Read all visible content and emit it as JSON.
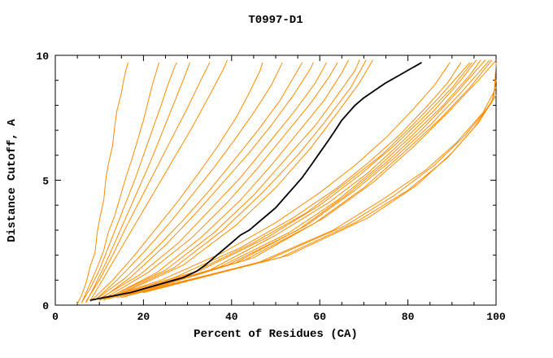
{
  "chart_data": {
    "type": "line",
    "title": "T0997-D1",
    "xlabel": "Percent of Residues (CA)",
    "ylabel": "Distance Cutoff, A",
    "xlim": [
      0,
      100
    ],
    "ylim": [
      0,
      10
    ],
    "x_major_ticks": [
      0,
      20,
      40,
      60,
      80,
      100
    ],
    "x_minor_step": 5,
    "y_major_ticks": [
      0,
      5,
      10
    ],
    "y_minor_step": 1,
    "grid": false,
    "background": "#ffffff",
    "frame_color": "#000000",
    "series_color": "#ff8c00",
    "highlight_color": "#000000",
    "series": [
      [
        [
          5,
          0.05
        ],
        [
          6,
          0.4
        ],
        [
          7,
          0.9
        ],
        [
          8,
          1.6
        ],
        [
          9,
          2.1
        ],
        [
          9.5,
          2.9
        ],
        [
          10,
          3.4
        ],
        [
          11,
          4.2
        ],
        [
          11.5,
          5.1
        ],
        [
          12,
          5.6
        ],
        [
          13,
          6.4
        ],
        [
          13.5,
          7.2
        ],
        [
          14,
          7.8
        ],
        [
          15,
          8.5
        ],
        [
          15.5,
          9.0
        ],
        [
          16,
          9.4
        ],
        [
          16.5,
          9.7
        ]
      ],
      [
        [
          6,
          0.1
        ],
        [
          7,
          0.5
        ],
        [
          8,
          0.9
        ],
        [
          9.5,
          1.5
        ],
        [
          11,
          2.2
        ],
        [
          12,
          2.9
        ],
        [
          13.5,
          3.6
        ],
        [
          15,
          4.5
        ],
        [
          16,
          5.1
        ],
        [
          17.5,
          5.9
        ],
        [
          19,
          6.8
        ],
        [
          20,
          7.4
        ],
        [
          21,
          8.1
        ],
        [
          22,
          8.8
        ],
        [
          23,
          9.4
        ],
        [
          23.5,
          9.7
        ]
      ],
      [
        [
          6,
          0.1
        ],
        [
          8,
          0.7
        ],
        [
          10,
          1.4
        ],
        [
          12,
          2.3
        ],
        [
          14,
          3.2
        ],
        [
          16,
          4.1
        ],
        [
          18,
          5.0
        ],
        [
          20,
          6.0
        ],
        [
          22,
          7.0
        ],
        [
          24,
          8.0
        ],
        [
          25.5,
          8.8
        ],
        [
          27,
          9.5
        ],
        [
          27.5,
          9.7
        ]
      ],
      [
        [
          7,
          0.1
        ],
        [
          9,
          0.8
        ],
        [
          11.5,
          1.7
        ],
        [
          14,
          2.7
        ],
        [
          16.5,
          3.7
        ],
        [
          19,
          4.7
        ],
        [
          21.5,
          5.7
        ],
        [
          24,
          6.8
        ],
        [
          26.5,
          7.9
        ],
        [
          29,
          9.0
        ],
        [
          30.5,
          9.7
        ]
      ],
      [
        [
          7,
          0.15
        ],
        [
          10,
          1.0
        ],
        [
          13,
          2.0
        ],
        [
          16,
          3.1
        ],
        [
          19.5,
          4.3
        ],
        [
          23,
          5.5
        ],
        [
          26.5,
          6.7
        ],
        [
          30,
          7.9
        ],
        [
          33,
          9.0
        ],
        [
          35,
          9.7
        ]
      ],
      [
        [
          8,
          0.2
        ],
        [
          11,
          1.1
        ],
        [
          15,
          2.3
        ],
        [
          19,
          3.5
        ],
        [
          23,
          4.7
        ],
        [
          27,
          5.9
        ],
        [
          31,
          7.1
        ],
        [
          35,
          8.4
        ],
        [
          38,
          9.4
        ],
        [
          39,
          9.8
        ]
      ],
      [
        [
          8,
          0.15
        ],
        [
          13,
          1.0
        ],
        [
          18,
          2.0
        ],
        [
          23,
          3.1
        ],
        [
          28,
          4.2
        ],
        [
          33,
          5.4
        ],
        [
          37,
          6.4
        ],
        [
          41,
          7.5
        ],
        [
          44,
          8.5
        ],
        [
          46.5,
          9.4
        ],
        [
          47,
          9.7
        ]
      ],
      [
        [
          9,
          0.2
        ],
        [
          14,
          1.0
        ],
        [
          20,
          2.1
        ],
        [
          26,
          3.3
        ],
        [
          31,
          4.4
        ],
        [
          36,
          5.5
        ],
        [
          41,
          6.7
        ],
        [
          45,
          7.7
        ],
        [
          49,
          8.8
        ],
        [
          51.5,
          9.7
        ]
      ],
      [
        [
          9,
          0.2
        ],
        [
          16,
          1.1
        ],
        [
          23,
          2.3
        ],
        [
          29,
          3.4
        ],
        [
          35,
          4.6
        ],
        [
          41,
          5.9
        ],
        [
          46,
          7.0
        ],
        [
          51,
          8.2
        ],
        [
          55,
          9.4
        ],
        [
          56,
          9.7
        ]
      ],
      [
        [
          10,
          0.2
        ],
        [
          17,
          1.1
        ],
        [
          25,
          2.4
        ],
        [
          32,
          3.7
        ],
        [
          38,
          4.9
        ],
        [
          44,
          6.1
        ],
        [
          49,
          7.2
        ],
        [
          54,
          8.4
        ],
        [
          58,
          9.5
        ],
        [
          58.5,
          9.7
        ]
      ],
      [
        [
          10,
          0.25
        ],
        [
          19,
          1.2
        ],
        [
          28,
          2.5
        ],
        [
          35,
          3.8
        ],
        [
          42,
          5.1
        ],
        [
          48,
          6.4
        ],
        [
          54,
          7.7
        ],
        [
          59,
          8.9
        ],
        [
          61.5,
          9.7
        ]
      ],
      [
        [
          11,
          0.25
        ],
        [
          21,
          1.3
        ],
        [
          31,
          2.7
        ],
        [
          39,
          4.1
        ],
        [
          46,
          5.5
        ],
        [
          52,
          6.8
        ],
        [
          58,
          8.1
        ],
        [
          62,
          9.1
        ],
        [
          64,
          9.7
        ]
      ],
      [
        [
          11,
          0.2
        ],
        [
          23,
          1.3
        ],
        [
          33,
          2.7
        ],
        [
          42,
          4.2
        ],
        [
          49,
          5.6
        ],
        [
          55,
          6.9
        ],
        [
          61,
          8.2
        ],
        [
          65,
          9.3
        ],
        [
          66.5,
          9.8
        ]
      ],
      [
        [
          12,
          0.3
        ],
        [
          25,
          1.4
        ],
        [
          36,
          2.9
        ],
        [
          45,
          4.4
        ],
        [
          52,
          5.8
        ],
        [
          59,
          7.2
        ],
        [
          64,
          8.4
        ],
        [
          68,
          9.4
        ],
        [
          69,
          9.8
        ]
      ],
      [
        [
          12,
          0.25
        ],
        [
          27,
          1.5
        ],
        [
          38,
          3.0
        ],
        [
          47,
          4.5
        ],
        [
          55,
          6.0
        ],
        [
          61,
          7.3
        ],
        [
          67,
          8.7
        ],
        [
          70.5,
          9.8
        ]
      ],
      [
        [
          13,
          0.3
        ],
        [
          29,
          1.6
        ],
        [
          41,
          3.2
        ],
        [
          50,
          4.7
        ],
        [
          58,
          6.3
        ],
        [
          64,
          7.7
        ],
        [
          69,
          8.9
        ],
        [
          72,
          9.8
        ]
      ],
      [
        [
          10,
          0.2
        ],
        [
          24,
          1.0
        ],
        [
          38,
          2.1
        ],
        [
          50,
          3.3
        ],
        [
          60,
          4.5
        ],
        [
          68,
          5.6
        ],
        [
          75,
          6.7
        ],
        [
          81,
          7.8
        ],
        [
          86,
          8.8
        ],
        [
          89.5,
          9.7
        ]
      ],
      [
        [
          11,
          0.25
        ],
        [
          27,
          1.1
        ],
        [
          42,
          2.3
        ],
        [
          54,
          3.5
        ],
        [
          64,
          4.7
        ],
        [
          71,
          5.7
        ],
        [
          78,
          6.8
        ],
        [
          84,
          7.9
        ],
        [
          89,
          8.9
        ],
        [
          92,
          9.7
        ]
      ],
      [
        [
          12,
          0.25
        ],
        [
          30,
          1.2
        ],
        [
          45,
          2.5
        ],
        [
          57,
          3.7
        ],
        [
          66,
          4.9
        ],
        [
          74,
          6.0
        ],
        [
          81,
          7.2
        ],
        [
          87,
          8.3
        ],
        [
          92,
          9.3
        ],
        [
          94,
          9.7
        ]
      ],
      [
        [
          12,
          0.3
        ],
        [
          33,
          1.4
        ],
        [
          48,
          2.7
        ],
        [
          60,
          4.0
        ],
        [
          69,
          5.2
        ],
        [
          77,
          6.4
        ],
        [
          84,
          7.6
        ],
        [
          90,
          8.7
        ],
        [
          94.5,
          9.7
        ]
      ],
      [
        [
          13,
          0.3
        ],
        [
          35,
          1.4
        ],
        [
          50,
          2.8
        ],
        [
          62,
          4.1
        ],
        [
          71,
          5.3
        ],
        [
          79,
          6.6
        ],
        [
          86,
          7.8
        ],
        [
          92,
          9.0
        ],
        [
          95.5,
          9.8
        ]
      ],
      [
        [
          14,
          0.3
        ],
        [
          37,
          1.5
        ],
        [
          53,
          2.9
        ],
        [
          64,
          4.2
        ],
        [
          73,
          5.5
        ],
        [
          81,
          6.8
        ],
        [
          88,
          8.0
        ],
        [
          94,
          9.2
        ],
        [
          96.5,
          9.8
        ]
      ],
      [
        [
          14,
          0.35
        ],
        [
          39,
          1.6
        ],
        [
          55,
          3.0
        ],
        [
          66,
          4.4
        ],
        [
          75,
          5.7
        ],
        [
          83,
          7.0
        ],
        [
          90,
          8.3
        ],
        [
          95,
          9.3
        ],
        [
          97.5,
          9.8
        ]
      ],
      [
        [
          15,
          0.35
        ],
        [
          41,
          1.7
        ],
        [
          57,
          3.2
        ],
        [
          68,
          4.6
        ],
        [
          77,
          5.9
        ],
        [
          85,
          7.2
        ],
        [
          92,
          8.5
        ],
        [
          97,
          9.5
        ],
        [
          98.5,
          9.8
        ]
      ],
      [
        [
          15,
          0.3
        ],
        [
          43,
          1.8
        ],
        [
          59,
          3.3
        ],
        [
          70,
          4.7
        ],
        [
          79,
          6.1
        ],
        [
          87,
          7.4
        ],
        [
          94,
          8.7
        ],
        [
          99,
          9.8
        ]
      ],
      [
        [
          16,
          0.35
        ],
        [
          45,
          1.9
        ],
        [
          61,
          3.5
        ],
        [
          72,
          4.9
        ],
        [
          81,
          6.3
        ],
        [
          89,
          7.7
        ],
        [
          96,
          9.0
        ],
        [
          100,
          9.8
        ]
      ],
      [
        [
          16,
          0.4
        ],
        [
          46,
          1.7
        ],
        [
          63,
          3.0
        ],
        [
          74,
          4.2
        ],
        [
          84,
          5.4
        ],
        [
          91,
          6.5
        ],
        [
          97,
          7.7
        ],
        [
          100,
          8.7
        ]
      ],
      [
        [
          17,
          0.4
        ],
        [
          48,
          1.8
        ],
        [
          66,
          3.2
        ],
        [
          77,
          4.4
        ],
        [
          86,
          5.6
        ],
        [
          93,
          6.8
        ],
        [
          99,
          8.1
        ],
        [
          100,
          9.0
        ]
      ],
      [
        [
          18,
          0.45
        ],
        [
          51,
          1.9
        ],
        [
          68,
          3.3
        ],
        [
          80,
          4.6
        ],
        [
          89,
          5.9
        ],
        [
          95,
          7.1
        ],
        [
          99.5,
          8.3
        ],
        [
          100,
          9.7
        ]
      ],
      [
        [
          20,
          0.5
        ],
        [
          53,
          2.0
        ],
        [
          71,
          3.5
        ],
        [
          82,
          4.8
        ],
        [
          90,
          6.1
        ],
        [
          96,
          7.3
        ],
        [
          100,
          8.4
        ]
      ]
    ],
    "highlight_series": [
      [
        8,
        0.2
      ],
      [
        11,
        0.3
      ],
      [
        14,
        0.4
      ],
      [
        17,
        0.5
      ],
      [
        20,
        0.65
      ],
      [
        23,
        0.8
      ],
      [
        26,
        0.95
      ],
      [
        29,
        1.1
      ],
      [
        32,
        1.35
      ],
      [
        34,
        1.6
      ],
      [
        36,
        1.9
      ],
      [
        38,
        2.2
      ],
      [
        40,
        2.5
      ],
      [
        42,
        2.8
      ],
      [
        44,
        3.0
      ],
      [
        46,
        3.3
      ],
      [
        48,
        3.6
      ],
      [
        50,
        3.9
      ],
      [
        52,
        4.3
      ],
      [
        54,
        4.7
      ],
      [
        56,
        5.1
      ],
      [
        58,
        5.6
      ],
      [
        60,
        6.1
      ],
      [
        62,
        6.6
      ],
      [
        63.5,
        7.0
      ],
      [
        65,
        7.4
      ],
      [
        66.5,
        7.7
      ],
      [
        68,
        8.0
      ],
      [
        70,
        8.3
      ],
      [
        72.5,
        8.6
      ],
      [
        75,
        8.9
      ],
      [
        78,
        9.2
      ],
      [
        80.5,
        9.45
      ],
      [
        83,
        9.7
      ]
    ]
  }
}
